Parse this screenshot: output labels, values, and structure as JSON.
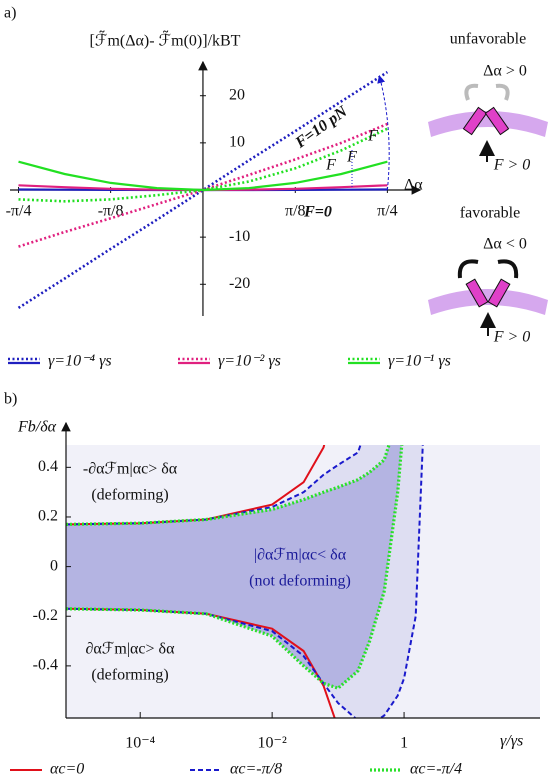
{
  "chart_data": [
    {
      "type": "line",
      "panel": "a)",
      "title": "[ℱ̃m(Δα)- ℱ̃m(0)]/kBT",
      "x_label": "Δα",
      "x": [
        -0.785,
        -0.589,
        -0.393,
        -0.196,
        0,
        0.196,
        0.393,
        0.589,
        0.785
      ],
      "xlim": [
        -0.8,
        0.86
      ],
      "ylim": [
        -28,
        28
      ],
      "xticks": [
        {
          "value": -0.785,
          "label": "-π/4"
        },
        {
          "value": -0.393,
          "label": "-π/8"
        },
        {
          "value": 0.393,
          "label": "π/8"
        },
        {
          "value": 0.785,
          "label": "π/4"
        }
      ],
      "yticks": [
        -20,
        -10,
        10,
        20
      ],
      "series": [
        {
          "name": "γ=10⁻⁴ γs",
          "color": "#1f1fbf",
          "values": [
            0.1,
            0.06,
            0.03,
            0.01,
            0,
            0.01,
            0.03,
            0.06,
            0.1
          ],
          "values_F": [
            -25,
            -18.8,
            -12.5,
            -6.3,
            0,
            6.3,
            12.5,
            18.8,
            25
          ]
        },
        {
          "name": "γ=10⁻² γs",
          "color": "#e0207f",
          "values": [
            1,
            0.6,
            0.25,
            0.06,
            0,
            0.06,
            0.25,
            0.6,
            1
          ],
          "values_F": [
            -12,
            -8.9,
            -6,
            -3,
            0,
            3.2,
            6.5,
            10,
            14
          ]
        },
        {
          "name": "γ=10⁻¹ γs",
          "color": "#22e022",
          "values": [
            6,
            3.4,
            1.5,
            0.4,
            0,
            0.4,
            1.5,
            3.4,
            6
          ],
          "values_F": [
            -2,
            -2.4,
            -2,
            -1.1,
            0,
            1.8,
            4.6,
            8.4,
            13
          ]
        }
      ],
      "annotations": [
        "F=10 pN",
        "F=0",
        "F",
        "F",
        "F"
      ]
    },
    {
      "type": "area-band",
      "panel": "b)",
      "y_label": "Fb/δα",
      "x_label": "γ/γs",
      "xscale": "log",
      "x": [
        7.5e-06,
        0.0001,
        0.001,
        0.01,
        0.03,
        0.06,
        0.1,
        0.2,
        0.3,
        0.5,
        0.8,
        1,
        1.5,
        2
      ],
      "xlim": [
        7.5e-06,
        115
      ],
      "ylim": [
        -0.61,
        0.49
      ],
      "xticks": [
        {
          "value": 0.0001,
          "label": "10⁻⁴"
        },
        {
          "value": 0.01,
          "label": "10⁻²"
        },
        1
      ],
      "yticks": [
        -0.4,
        -0.2,
        0,
        0.2,
        0.4
      ],
      "series": [
        {
          "name": "αc=0",
          "color": "#e0101a",
          "style": "solid",
          "values": [
            0.17,
            0.175,
            0.19,
            0.25,
            0.34,
            0.48,
            0.7,
            null,
            null,
            null,
            null,
            null,
            null,
            null
          ],
          "lower": [
            -0.17,
            -0.175,
            -0.19,
            -0.25,
            -0.34,
            -0.48,
            -0.65,
            null,
            null,
            null,
            null,
            null,
            null,
            null
          ]
        },
        {
          "name": "αc=-π/8",
          "color": "#1a1acc",
          "style": "dashed",
          "fill": "#dedef2",
          "values": [
            0.17,
            0.175,
            0.19,
            0.24,
            0.3,
            0.37,
            0.41,
            0.46,
            0.6,
            null,
            null,
            null,
            null,
            null
          ],
          "lower": [
            -0.17,
            -0.175,
            -0.19,
            -0.26,
            -0.36,
            -0.47,
            -0.55,
            -0.62,
            -0.64,
            -0.6,
            -0.52,
            -0.45,
            -0.2,
            0.6
          ]
        },
        {
          "name": "αc=-π/4",
          "color": "#2ae02a",
          "style": "dotted",
          "fill": "#b4b4e2",
          "values": [
            0.17,
            0.175,
            0.19,
            0.23,
            0.27,
            0.3,
            0.32,
            0.35,
            0.38,
            0.43,
            0.6,
            null,
            null,
            null
          ],
          "lower": [
            -0.17,
            -0.175,
            -0.19,
            -0.28,
            -0.4,
            -0.47,
            -0.49,
            -0.42,
            -0.3,
            -0.1,
            0.3,
            0.6,
            null,
            null
          ]
        }
      ],
      "annotations": [
        "-∂αℱm|αc> δα",
        "(deforming)",
        "|∂αℱm|αc< δα",
        "(not deforming)",
        "∂αℱm|αc> δα",
        "(deforming)"
      ]
    }
  ],
  "diagram": {
    "top_label": "unfavorable",
    "top_condition": "Δα > 0",
    "top_force": "F > 0",
    "bottom_label": "favorable",
    "bottom_condition": "Δα < 0",
    "bottom_force": "F > 0"
  }
}
